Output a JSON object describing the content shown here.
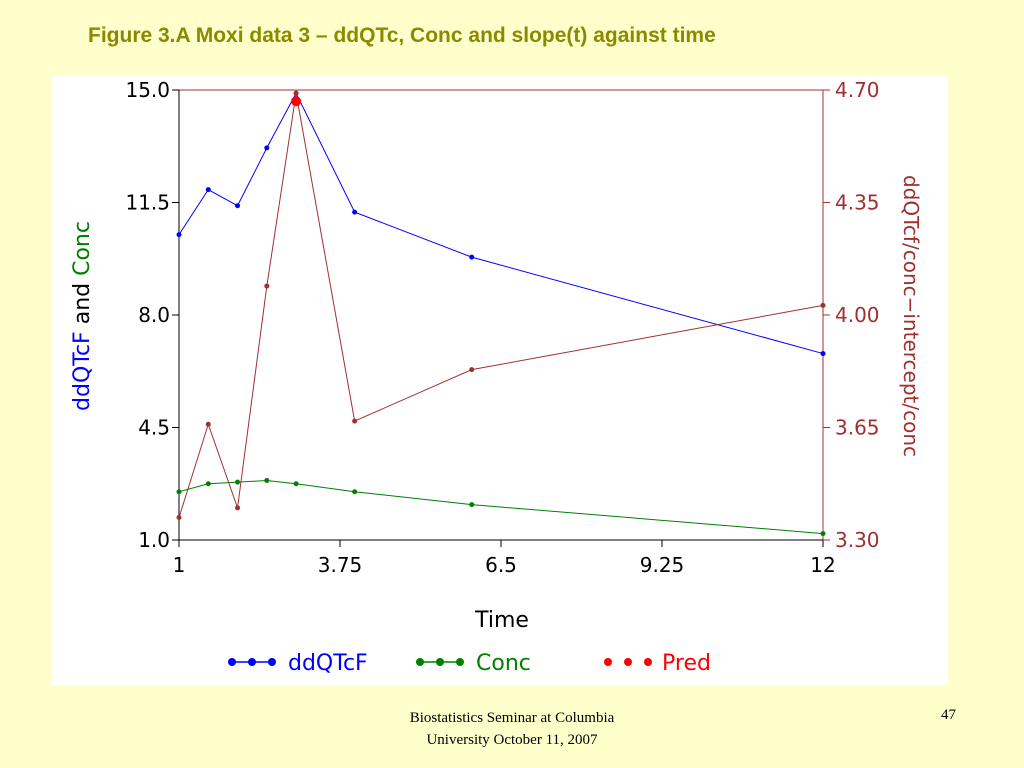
{
  "slide": {
    "title": "Figure 3.A Moxi data 3 – ddQTc, Conc and slope(t) against time",
    "footer_line1": "Biostatistics Seminar at Columbia",
    "footer_line2": "University October 11, 2007",
    "page_number": "47"
  },
  "chart_data": {
    "type": "line",
    "title": "",
    "xlabel": "Time",
    "ylabel_left_parts": [
      "ddQTcF",
      " and ",
      "Conc"
    ],
    "ylabel_right": "ddQTcf/conc−intercept/conc",
    "xlim": [
      1,
      12
    ],
    "ylim_left": [
      1.0,
      15.0
    ],
    "ylim_right": [
      3.3,
      4.7
    ],
    "x_ticks": [
      "1",
      "3.75",
      "6.5",
      "9.25",
      "12"
    ],
    "y_left_ticks": [
      "15.0",
      "11.5",
      "8.0",
      "4.5",
      "1.0"
    ],
    "y_right_ticks": [
      "4.70",
      "4.35",
      "4.00",
      "3.65",
      "3.30"
    ],
    "legend_position": "bottom",
    "colors": {
      "ddQTcF": "#0000FF",
      "Conc": "#008000",
      "Pred": "#FF0000",
      "slope": "#A03030",
      "frame": "#A03030",
      "axis_left_text": "#000000",
      "axis_right_text": "#A03030"
    },
    "series": [
      {
        "name": "ddQTcF",
        "axis": "left",
        "x": [
          1,
          1.5,
          2,
          2.5,
          3,
          4,
          6,
          12
        ],
        "y": [
          10.5,
          11.9,
          11.4,
          13.2,
          14.9,
          11.2,
          9.8,
          6.8
        ]
      },
      {
        "name": "Conc",
        "axis": "left",
        "x": [
          1,
          1.5,
          2,
          2.5,
          3,
          4,
          6,
          12
        ],
        "y": [
          2.5,
          2.75,
          2.8,
          2.85,
          2.75,
          2.5,
          2.1,
          1.2
        ]
      },
      {
        "axis": "right",
        "x": [
          1,
          1.5,
          2,
          2.5,
          3,
          4,
          6,
          12
        ],
        "y": [
          3.37,
          3.66,
          3.4,
          4.09,
          4.69,
          3.67,
          3.83,
          4.03
        ]
      },
      {
        "name": "Pred",
        "axis": "right",
        "x": [
          3
        ],
        "y": [
          4.665
        ]
      }
    ]
  }
}
